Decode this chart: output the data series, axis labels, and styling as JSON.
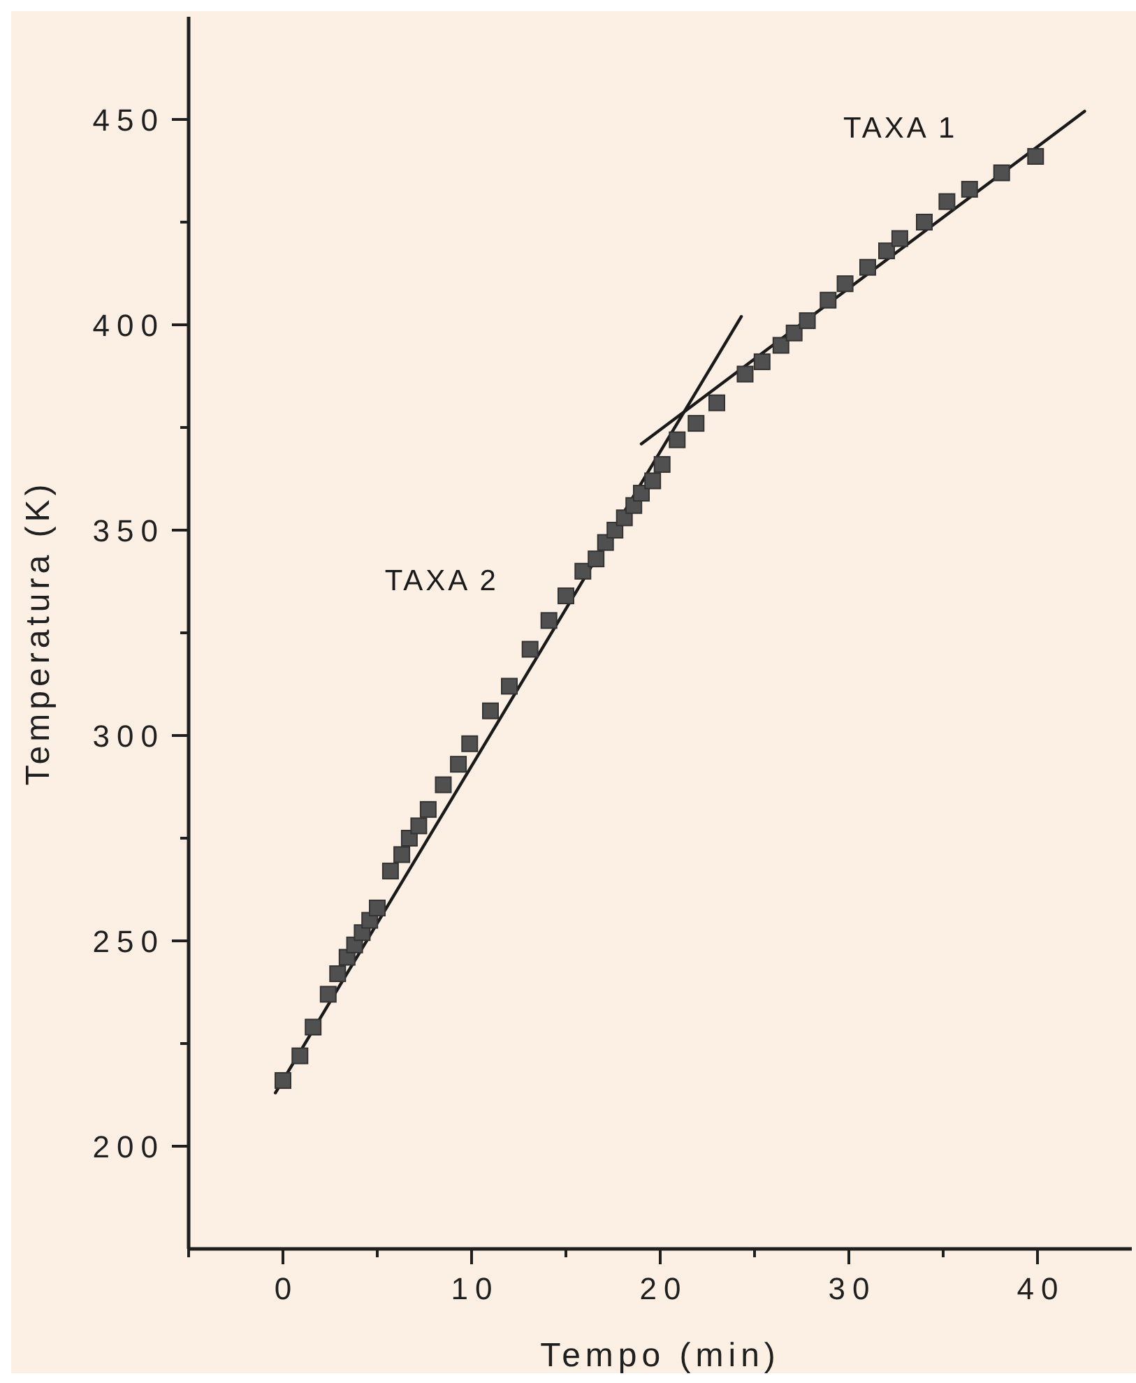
{
  "chart_data": {
    "type": "scatter",
    "xlabel": "Tempo (min)",
    "ylabel": "Temperatura (K)",
    "xlim": [
      -5,
      45
    ],
    "ylim": [
      175,
      475
    ],
    "xticks": [
      {
        "value": -5,
        "label": null
      },
      0,
      {
        "value": 5,
        "label": null
      },
      10,
      {
        "value": 15,
        "label": null
      },
      20,
      {
        "value": 25,
        "label": null
      },
      30,
      {
        "value": 35,
        "label": null
      },
      40
    ],
    "yticks": [
      200,
      {
        "value": 225,
        "label": null
      },
      250,
      {
        "value": 275,
        "label": null
      },
      300,
      {
        "value": 325,
        "label": null
      },
      350,
      {
        "value": 375,
        "label": null
      },
      400,
      {
        "value": 425,
        "label": null
      },
      450
    ],
    "marker": "square",
    "series": [
      {
        "color": "#505050",
        "x": [
          0,
          0.9,
          1.6,
          2.4,
          2.9,
          3.4,
          3.8,
          4.2,
          4.6,
          5.0,
          5.7,
          6.3,
          6.7,
          7.2,
          7.7,
          8.5,
          9.3,
          9.9,
          11.0,
          12.0,
          13.1,
          14.1,
          15.0,
          15.9,
          16.6,
          17.1,
          17.6,
          18.1,
          18.6,
          19.0,
          19.6,
          20.1,
          20.9,
          21.9,
          23.0,
          24.5,
          25.4,
          26.4,
          27.1,
          27.8,
          28.9,
          29.8,
          31.0,
          32.0,
          32.7,
          34.0,
          35.2,
          36.4,
          38.1,
          39.9
        ],
        "values": [
          216,
          222,
          229,
          237,
          242,
          246,
          249,
          252,
          255,
          258,
          267,
          271,
          275,
          278,
          282,
          288,
          293,
          298,
          306,
          312,
          321,
          328,
          334,
          340,
          343,
          347,
          350,
          353,
          356,
          359,
          362,
          366,
          372,
          376,
          381,
          388,
          391,
          395,
          398,
          401,
          406,
          410,
          414,
          418,
          421,
          425,
          430,
          433,
          437,
          441
        ]
      },
      {
        "type": "line",
        "marker": "none",
        "name": "TAXA 2",
        "color": "#1a1a1a",
        "x": [
          -0.4,
          24.3
        ],
        "values": [
          213,
          402
        ]
      },
      {
        "type": "line",
        "marker": "none",
        "name": "TAXA 1",
        "color": "#1a1a1a",
        "x": [
          19.0,
          42.5
        ],
        "values": [
          371,
          452
        ]
      }
    ]
  }
}
